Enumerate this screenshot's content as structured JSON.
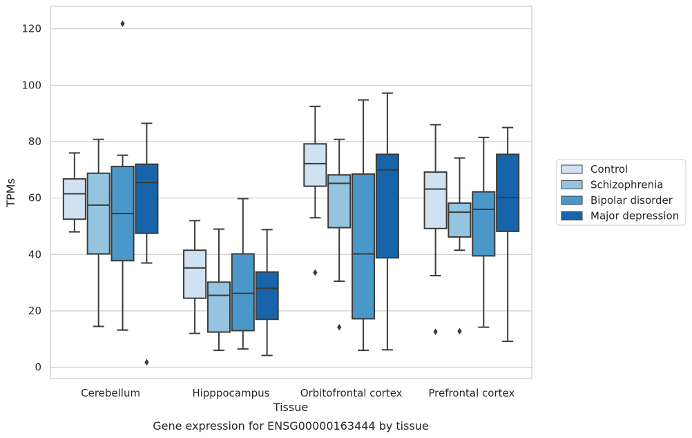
{
  "chart_data": {
    "type": "boxplot",
    "title": "",
    "caption": "Gene expression for ENSG00000163444 by tissue",
    "xlabel": "Tissue",
    "ylabel": "TPMs",
    "ylim": [
      -4,
      128
    ],
    "yticks": [
      0,
      20,
      40,
      60,
      80,
      100,
      120
    ],
    "grid": "horizontal",
    "legend_position": "right",
    "categories": [
      "Cerebellum",
      "Hipppocampus",
      "Orbitofrontal cortex",
      "Prefrontal cortex"
    ],
    "series": [
      {
        "name": "Control",
        "color": "#d0e1f2",
        "boxes": [
          {
            "whislo": 48,
            "q1": 52.5,
            "med": 61.5,
            "q3": 66.8,
            "whishi": 76,
            "fliers": []
          },
          {
            "whislo": 12,
            "q1": 24.5,
            "med": 35.2,
            "q3": 41.5,
            "whishi": 52,
            "fliers": []
          },
          {
            "whislo": 53,
            "q1": 64.2,
            "med": 72.2,
            "q3": 79.2,
            "whishi": 92.5,
            "fliers": [
              33.6
            ]
          },
          {
            "whislo": 32.5,
            "q1": 49.2,
            "med": 63.2,
            "q3": 69.2,
            "whishi": 86,
            "fliers": [
              12.6
            ]
          }
        ]
      },
      {
        "name": "Schizophrenia",
        "color": "#94c4df",
        "boxes": [
          {
            "whislo": 14.5,
            "q1": 40.2,
            "med": 57.5,
            "q3": 68.8,
            "whishi": 80.8,
            "fliers": []
          },
          {
            "whislo": 6,
            "q1": 12.5,
            "med": 25.5,
            "q3": 30.2,
            "whishi": 49,
            "fliers": []
          },
          {
            "whislo": 30.5,
            "q1": 49.5,
            "med": 65.2,
            "q3": 68.2,
            "whishi": 80.8,
            "fliers": [
              14.2
            ]
          },
          {
            "whislo": 41.5,
            "q1": 46.2,
            "med": 55,
            "q3": 58.2,
            "whishi": 74.2,
            "fliers": [
              12.8
            ]
          }
        ]
      },
      {
        "name": "Bipolar disorder",
        "color": "#4a98c9",
        "boxes": [
          {
            "whislo": 13.2,
            "q1": 37.8,
            "med": 54.5,
            "q3": 71.2,
            "whishi": 75.2,
            "fliers": [
              121.8
            ]
          },
          {
            "whislo": 6.5,
            "q1": 13,
            "med": 26.2,
            "q3": 40.2,
            "whishi": 59.8,
            "fliers": []
          },
          {
            "whislo": 6,
            "q1": 17.2,
            "med": 40.2,
            "q3": 68.5,
            "whishi": 94.8,
            "fliers": []
          },
          {
            "whislo": 14.2,
            "q1": 39.5,
            "med": 56,
            "q3": 62.2,
            "whishi": 81.5,
            "fliers": []
          }
        ]
      },
      {
        "name": "Major depression",
        "color": "#1764ab",
        "boxes": [
          {
            "whislo": 37,
            "q1": 47.5,
            "med": 65.5,
            "q3": 72,
            "whishi": 86.5,
            "fliers": [
              1.8
            ]
          },
          {
            "whislo": 4.2,
            "q1": 17,
            "med": 28,
            "q3": 33.8,
            "whishi": 48.8,
            "fliers": []
          },
          {
            "whislo": 6.2,
            "q1": 38.8,
            "med": 70,
            "q3": 75.5,
            "whishi": 97.2,
            "fliers": []
          },
          {
            "whislo": 9.2,
            "q1": 48.2,
            "med": 60.2,
            "q3": 75.5,
            "whishi": 85,
            "fliers": []
          }
        ]
      }
    ]
  }
}
